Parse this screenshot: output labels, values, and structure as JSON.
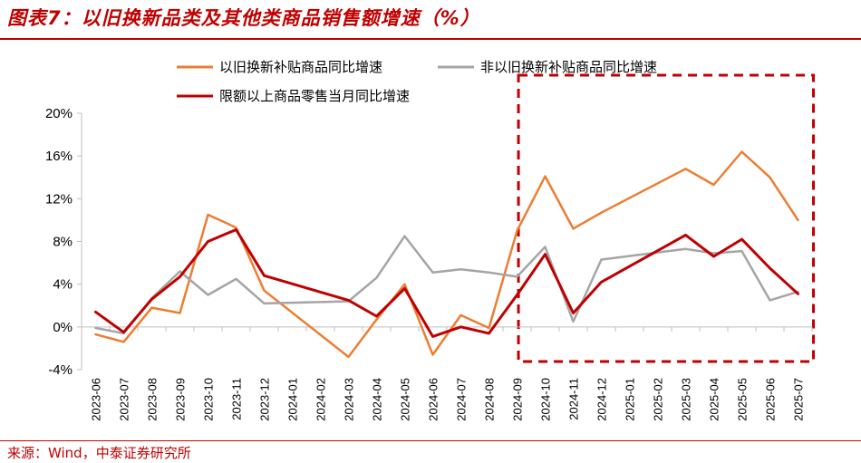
{
  "title": "图表7：以旧换新品类及其他类商品销售额增速（%）",
  "source": "来源：Wind，中泰证券研究所",
  "chart_data": {
    "type": "line",
    "title": "图表7：以旧换新品类及其他类商品销售额增速（%）",
    "xlabel": "",
    "ylabel": "",
    "ylim": [
      -4,
      20
    ],
    "yticks": [
      -4,
      0,
      4,
      8,
      12,
      16,
      20
    ],
    "ytick_labels": [
      "-4%",
      "0%",
      "4%",
      "8%",
      "12%",
      "16%",
      "20%"
    ],
    "x": [
      "2023-06",
      "2023-07",
      "2023-08",
      "2023-09",
      "2023-10",
      "2023-11",
      "2023-12",
      "2024-01",
      "2024-02",
      "2024-03",
      "2024-04",
      "2024-05",
      "2024-06",
      "2024-07",
      "2024-08",
      "2024-09",
      "2024-10",
      "2024-11",
      "2024-12",
      "2025-01",
      "2025-02",
      "2025-03",
      "2025-04",
      "2025-05",
      "2025-06",
      "2025-07"
    ],
    "grid": false,
    "legend_position": "top",
    "series": [
      {
        "name": "以旧换新补贴商品同比增速",
        "color": "#ed7d31",
        "values": [
          -0.7,
          -1.4,
          1.8,
          1.3,
          10.5,
          9.3,
          3.4,
          null,
          null,
          -2.8,
          0.7,
          4.0,
          -2.6,
          1.1,
          -0.1,
          9.0,
          14.1,
          9.2,
          10.7,
          null,
          null,
          14.8,
          13.3,
          16.4,
          14.0,
          10.0
        ]
      },
      {
        "name": "非以旧换新补贴商品同比增速",
        "color": "#a5a5a5",
        "values": [
          -0.1,
          -0.6,
          2.7,
          5.2,
          3.0,
          4.5,
          2.2,
          null,
          null,
          2.4,
          4.6,
          8.5,
          5.1,
          5.4,
          5.1,
          4.7,
          7.5,
          0.5,
          6.3,
          null,
          null,
          7.3,
          6.9,
          7.1,
          2.5,
          3.3
        ]
      },
      {
        "name": "限额以上商品零售当月同比增速",
        "color": "#c00000",
        "values": [
          1.4,
          -0.5,
          2.6,
          4.7,
          8.0,
          9.1,
          4.8,
          null,
          null,
          2.5,
          1.0,
          3.6,
          -0.9,
          0.0,
          -0.6,
          3.0,
          6.8,
          1.3,
          4.2,
          null,
          null,
          8.6,
          6.6,
          8.2,
          5.5,
          3.1
        ]
      }
    ],
    "annotations": [
      {
        "type": "dashed-box",
        "x_from": "2024-10",
        "x_to": "2025-07",
        "color": "#c00000"
      }
    ]
  }
}
